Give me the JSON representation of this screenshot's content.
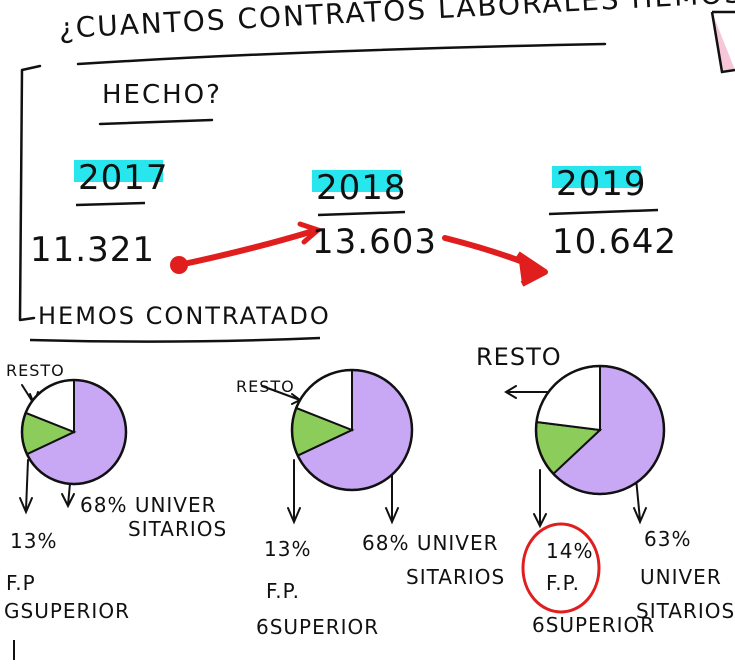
{
  "title": {
    "line1": "¿CUANTOS CONTRATOS LABORALES HEMOS",
    "line2": "HECHO?"
  },
  "years": [
    {
      "year": "2017",
      "count": "11.321"
    },
    {
      "year": "2018",
      "count": "13.603"
    },
    {
      "year": "2019",
      "count": "10.642"
    }
  ],
  "section_title": "HEMOS CONTRATADO",
  "colors": {
    "highlight": "#27e6ee",
    "arrow": "#e01e1e",
    "universitarios": "#c8a8f5",
    "fp": "#8ccc5a",
    "circle_mark": "#e01e1e"
  },
  "charts": [
    {
      "resto_label": "RESTO",
      "fp_pct": "13%",
      "fp_label_1": "F.P",
      "fp_label_2": "GSUPERIOR",
      "uni_pct": "68%",
      "uni_label_1": "UNIVER",
      "uni_label_2": "SITARIOS"
    },
    {
      "resto_label": "RESTO",
      "fp_pct": "13%",
      "fp_label_1": "F.P.",
      "fp_label_2": "6SUPERIOR",
      "uni_pct": "68%",
      "uni_label_1": "UNIVER",
      "uni_label_2": "SITARIOS"
    },
    {
      "resto_label": "RESTO",
      "fp_pct": "14%",
      "fp_label_1": "F.P.",
      "fp_label_2": "6SUPERIOR",
      "uni_pct": "63%",
      "uni_label_1": "UNIVER",
      "uni_label_2": "SITARIOS"
    }
  ],
  "chart_data": [
    {
      "type": "pie",
      "title": "2017",
      "categories": [
        "UNIVERSITARIOS",
        "F.P. G. SUPERIOR",
        "RESTO"
      ],
      "values": [
        68,
        13,
        19
      ]
    },
    {
      "type": "pie",
      "title": "2018",
      "categories": [
        "UNIVERSITARIOS",
        "F.P. G. SUPERIOR",
        "RESTO"
      ],
      "values": [
        68,
        13,
        19
      ]
    },
    {
      "type": "pie",
      "title": "2019",
      "categories": [
        "UNIVERSITARIOS",
        "F.P. G. SUPERIOR",
        "RESTO"
      ],
      "values": [
        63,
        14,
        23
      ]
    }
  ]
}
